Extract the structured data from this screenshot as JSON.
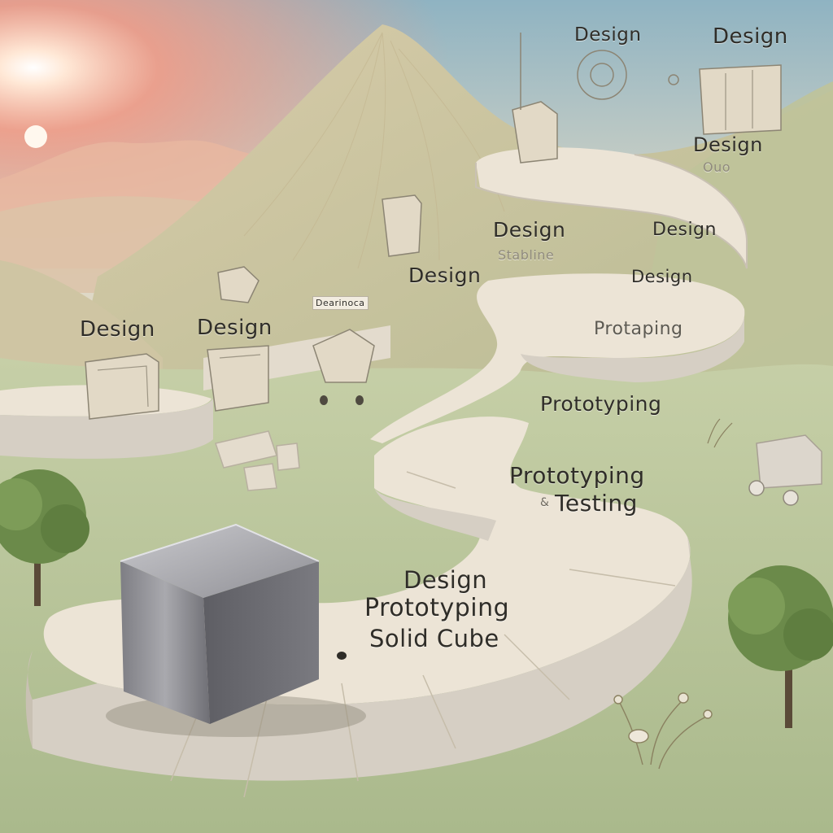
{
  "labels": {
    "design_top_center": "Design",
    "design_top_right": "Design",
    "design_right_mid": "Design",
    "design_path_upper": "Design",
    "design_path_right": "Design",
    "design_center_mid": "Design",
    "design_path_right_lower": "Design",
    "design_left_far": "Design",
    "design_left_near": "Design",
    "small_caption_center": "Dearinoca",
    "faint_caption_path": "Stabline",
    "faint_caption_right": "Ouo",
    "protaping": "Protaping",
    "prototyping_mid": "Prototyping",
    "prototyping_lower": "Prototyping",
    "testing": "Testing",
    "testing_prefix": "&",
    "final_design": "Design",
    "final_prototyping": "Prototyping",
    "final_solid_cube": "Solid Cube"
  },
  "colors": {
    "sky_top": "#8fb3c2",
    "sky_glow": "#f59a84",
    "sun": "#fff4e6",
    "dune": "#d7cfb4",
    "ground": "#b9c79c",
    "path_surface": "#ece4d6",
    "path_wall": "#d6cfc4",
    "cube": "#8a8a90",
    "tree": "#6b8a4a"
  },
  "icons": [
    "paper-cube-icon",
    "sun-icon",
    "tree-icon",
    "robot-cart-icon",
    "gear-sketch-icon",
    "plant-icon"
  ]
}
